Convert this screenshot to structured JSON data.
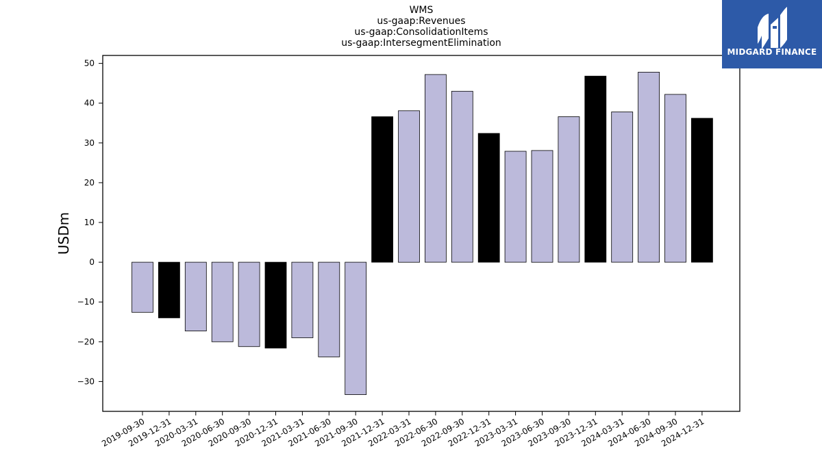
{
  "chart_data": {
    "type": "bar",
    "title": [
      "WMS",
      "us-gaap:Revenues",
      "us-gaap:ConsolidationItems",
      "us-gaap:IntersegmentElimination"
    ],
    "xlabel": "",
    "ylabel": "USDm",
    "ylim": [
      -37.5,
      52.0
    ],
    "yticks": [
      -30,
      -20,
      -10,
      0,
      10,
      20,
      30,
      40,
      50
    ],
    "categories": [
      "2019-09-30",
      "2019-12-31",
      "2020-03-31",
      "2020-06-30",
      "2020-09-30",
      "2020-12-31",
      "2021-03-31",
      "2021-06-30",
      "2021-09-30",
      "2021-12-31",
      "2022-03-31",
      "2022-06-30",
      "2022-09-30",
      "2022-12-31",
      "2023-03-31",
      "2023-06-30",
      "2023-09-30",
      "2023-12-31",
      "2024-03-31",
      "2024-06-30",
      "2024-09-30",
      "2024-12-31"
    ],
    "values": [
      -12.6,
      -14.0,
      -17.3,
      -20.0,
      -21.2,
      -21.6,
      -19.0,
      -23.8,
      -33.3,
      36.6,
      38.1,
      47.2,
      43.0,
      32.4,
      27.9,
      28.1,
      36.6,
      46.8,
      37.8,
      47.8,
      42.2,
      36.2
    ],
    "colors": {
      "quarter": "#bcbadb",
      "year_end": "#000000",
      "edge": "#000000"
    },
    "grid": false,
    "legend": "none"
  },
  "logo": {
    "text": "MIDGARD FINANCE",
    "background": "#2d5aa8"
  }
}
